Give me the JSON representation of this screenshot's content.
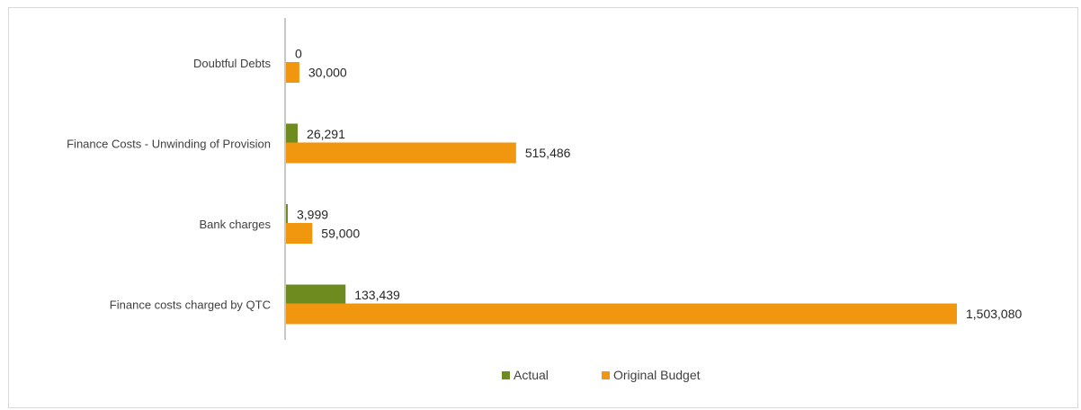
{
  "chart_data": {
    "type": "bar",
    "orientation": "horizontal",
    "title": "",
    "xlabel": "",
    "ylabel": "",
    "categories": [
      "Finance costs charged by QTC",
      "Bank charges",
      "Finance Costs - Unwinding of Provision",
      "Doubtful Debts"
    ],
    "series": [
      {
        "name": "Actual",
        "values": [
          133439,
          3999,
          26291,
          0
        ],
        "labels": [
          "133,439",
          "3,999",
          "26,291",
          "0"
        ],
        "color": "#6e8b1f"
      },
      {
        "name": "Original Budget",
        "values": [
          1503080,
          59000,
          515486,
          30000
        ],
        "labels": [
          "1,503,080",
          "59,000",
          "515,486",
          "30,000"
        ],
        "color": "#f0960f"
      }
    ],
    "xlim": [
      0,
      1503080
    ],
    "grid": false,
    "legend_position": "bottom",
    "data_labels": true
  }
}
